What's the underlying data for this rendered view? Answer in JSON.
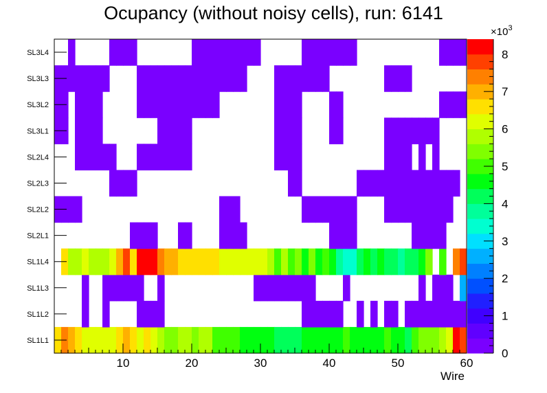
{
  "chart_data": {
    "type": "heatmap",
    "title": "Ocupancy (without noisy cells), run: 6141",
    "xlabel": "Wire",
    "ylabel": "",
    "x_range": [
      0,
      60
    ],
    "x_ticks": [
      10,
      20,
      30,
      40,
      50,
      60
    ],
    "y_categories": [
      "SL1L1",
      "SL1L2",
      "SL1L3",
      "SL1L4",
      "SL2L1",
      "SL2L2",
      "SL2L3",
      "SL2L4",
      "SL3L1",
      "SL3L2",
      "SL3L3",
      "SL3L4"
    ],
    "z_range": [
      0,
      8400
    ],
    "z_ticks": [
      0,
      1,
      2,
      3,
      4,
      5,
      6,
      7,
      8
    ],
    "z_multiplier_label": "×10",
    "z_multiplier_exponent": "3",
    "palette": [
      "#7a00ff",
      "#6000ff",
      "#4000ff",
      "#2020ff",
      "#0050ff",
      "#0080ff",
      "#00b0ff",
      "#00e0ff",
      "#00ffd0",
      "#00ff9a",
      "#00ff5a",
      "#00ff10",
      "#40ff00",
      "#80ff00",
      "#b0ff00",
      "#e0ff00",
      "#ffe000",
      "#ffb000",
      "#ff8000",
      "#ff4000",
      "#ff0000"
    ],
    "rows": {
      "SL1L1": [
        6600,
        7500,
        6800,
        6400,
        6300,
        6200,
        6200,
        6300,
        6300,
        6400,
        6900,
        6500,
        6300,
        6400,
        6100,
        5800,
        5500,
        5400,
        5600,
        5800,
        5400,
        5700,
        5900,
        5000,
        4800,
        4900,
        5000,
        4600,
        4600,
        4500,
        4500,
        4500,
        4200,
        4300,
        4300,
        4200,
        4400,
        4400,
        4500,
        4600,
        4600,
        4500,
        4800,
        4700,
        4700,
        4600,
        4500,
        4500,
        4900,
        4600,
        4400,
        4300,
        4800,
        5400,
        5300,
        5300,
        5900,
        6100,
        8000,
        7600
      ],
      "SL1L2": [
        0,
        0,
        0,
        0,
        300,
        0,
        0,
        300,
        0,
        0,
        0,
        0,
        300,
        300,
        300,
        300,
        0,
        0,
        0,
        0,
        0,
        0,
        0,
        0,
        0,
        0,
        0,
        0,
        0,
        0,
        0,
        0,
        0,
        0,
        0,
        0,
        300,
        300,
        300,
        300,
        300,
        300,
        0,
        0,
        300,
        0,
        300,
        0,
        300,
        300,
        0,
        300,
        300,
        300,
        300,
        300,
        300,
        300,
        300,
        300
      ],
      "SL1L3": [
        0,
        0,
        0,
        0,
        300,
        0,
        0,
        300,
        300,
        300,
        300,
        300,
        300,
        0,
        0,
        300,
        0,
        0,
        0,
        0,
        0,
        0,
        0,
        0,
        0,
        0,
        0,
        0,
        0,
        300,
        300,
        300,
        300,
        300,
        300,
        300,
        300,
        300,
        0,
        0,
        0,
        0,
        300,
        0,
        0,
        0,
        0,
        0,
        0,
        0,
        0,
        0,
        0,
        300,
        0,
        300,
        300,
        300,
        0,
        2400
      ],
      "SL1L4": [
        0,
        6400,
        5600,
        5800,
        6100,
        5800,
        5900,
        5600,
        6200,
        7000,
        7600,
        6400,
        8000,
        8000,
        8000,
        7400,
        6800,
        7000,
        6500,
        6500,
        6500,
        6500,
        6500,
        6500,
        6000,
        6000,
        6000,
        6000,
        6000,
        6000,
        6000,
        5600,
        5000,
        5800,
        5000,
        5500,
        4700,
        5200,
        4500,
        4800,
        4600,
        3900,
        3500,
        3500,
        4000,
        4600,
        4300,
        4600,
        4200,
        4000,
        3900,
        4100,
        4300,
        4400,
        5300,
        0,
        5000,
        0,
        7200,
        7600
      ],
      "SL2L1": [
        0,
        0,
        0,
        0,
        0,
        0,
        0,
        0,
        0,
        0,
        0,
        300,
        300,
        300,
        300,
        0,
        0,
        0,
        300,
        300,
        0,
        0,
        0,
        0,
        300,
        300,
        300,
        300,
        0,
        0,
        0,
        0,
        0,
        0,
        0,
        0,
        0,
        0,
        0,
        0,
        300,
        300,
        300,
        300,
        0,
        0,
        0,
        0,
        0,
        0,
        0,
        0,
        300,
        300,
        300,
        300,
        300,
        0,
        0,
        0
      ],
      "SL2L2": [
        300,
        300,
        300,
        300,
        0,
        0,
        0,
        0,
        0,
        0,
        0,
        0,
        0,
        0,
        0,
        0,
        0,
        0,
        0,
        0,
        0,
        0,
        0,
        0,
        300,
        300,
        300,
        0,
        0,
        0,
        0,
        0,
        0,
        0,
        0,
        0,
        300,
        300,
        300,
        300,
        300,
        300,
        300,
        300,
        0,
        0,
        0,
        0,
        300,
        300,
        300,
        300,
        300,
        300,
        300,
        300,
        300,
        300,
        0,
        0
      ],
      "SL2L3": [
        0,
        0,
        0,
        0,
        0,
        0,
        0,
        0,
        300,
        300,
        300,
        300,
        0,
        0,
        0,
        0,
        0,
        0,
        0,
        0,
        0,
        0,
        0,
        0,
        0,
        0,
        0,
        0,
        0,
        0,
        0,
        0,
        0,
        0,
        300,
        300,
        0,
        0,
        0,
        0,
        0,
        0,
        0,
        0,
        300,
        300,
        300,
        300,
        300,
        300,
        300,
        300,
        300,
        300,
        300,
        300,
        300,
        300,
        300,
        0
      ],
      "SL2L4": [
        0,
        0,
        0,
        300,
        300,
        300,
        300,
        300,
        300,
        0,
        0,
        0,
        300,
        300,
        300,
        300,
        300,
        300,
        300,
        300,
        0,
        0,
        0,
        0,
        0,
        0,
        0,
        0,
        0,
        0,
        0,
        0,
        300,
        300,
        300,
        300,
        0,
        0,
        0,
        0,
        0,
        0,
        0,
        0,
        0,
        0,
        0,
        0,
        300,
        300,
        300,
        300,
        0,
        300,
        0,
        300,
        0,
        0,
        0,
        0
      ],
      "SL3L1": [
        300,
        300,
        0,
        300,
        300,
        300,
        300,
        0,
        0,
        0,
        0,
        0,
        0,
        0,
        0,
        300,
        300,
        300,
        300,
        300,
        0,
        0,
        0,
        0,
        0,
        0,
        0,
        0,
        0,
        0,
        0,
        0,
        300,
        300,
        300,
        300,
        0,
        0,
        0,
        0,
        300,
        300,
        0,
        0,
        0,
        0,
        0,
        0,
        300,
        300,
        300,
        300,
        300,
        300,
        300,
        300,
        0,
        0,
        0,
        0
      ],
      "SL3L2": [
        300,
        300,
        0,
        300,
        300,
        300,
        300,
        0,
        0,
        0,
        0,
        0,
        300,
        300,
        300,
        300,
        300,
        300,
        300,
        300,
        300,
        300,
        300,
        300,
        0,
        0,
        0,
        0,
        0,
        0,
        0,
        0,
        300,
        300,
        300,
        300,
        0,
        0,
        0,
        0,
        300,
        300,
        0,
        0,
        0,
        0,
        0,
        0,
        0,
        0,
        0,
        0,
        0,
        0,
        0,
        0,
        300,
        300,
        300,
        300
      ],
      "SL3L3": [
        300,
        300,
        300,
        300,
        300,
        300,
        300,
        300,
        0,
        0,
        0,
        0,
        300,
        300,
        300,
        300,
        300,
        300,
        300,
        300,
        300,
        300,
        300,
        300,
        300,
        300,
        300,
        300,
        0,
        0,
        0,
        0,
        300,
        300,
        300,
        300,
        300,
        300,
        300,
        300,
        0,
        0,
        0,
        0,
        0,
        0,
        0,
        0,
        300,
        300,
        300,
        300,
        0,
        0,
        0,
        0,
        0,
        0,
        0,
        0
      ],
      "SL3L4": [
        0,
        0,
        300,
        0,
        0,
        0,
        0,
        0,
        300,
        300,
        300,
        300,
        0,
        0,
        0,
        0,
        0,
        0,
        0,
        0,
        300,
        300,
        300,
        300,
        300,
        300,
        300,
        300,
        300,
        300,
        0,
        0,
        0,
        0,
        0,
        0,
        300,
        300,
        300,
        300,
        300,
        300,
        300,
        300,
        0,
        0,
        0,
        0,
        0,
        0,
        0,
        0,
        0,
        0,
        0,
        0,
        300,
        300,
        300,
        300
      ]
    }
  }
}
